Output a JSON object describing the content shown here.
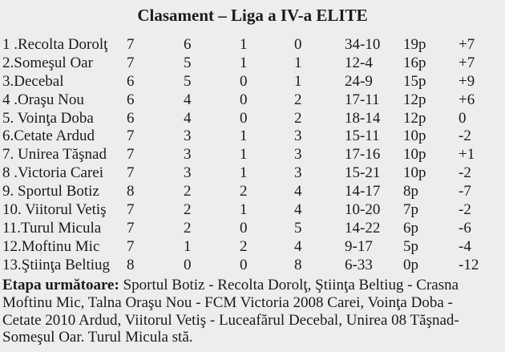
{
  "colors": {
    "background": "#ededed",
    "text": "#1b1b1b"
  },
  "title": "Clasament – Liga a IV-a ELITE",
  "table": {
    "column_keys": [
      "team",
      "played",
      "won",
      "drawn",
      "lost",
      "goals",
      "points",
      "diff"
    ],
    "rows": [
      {
        "team": "1 .Recolta Dorolţ",
        "played": "7",
        "won": "6",
        "drawn": "1",
        "lost": "0",
        "goals": "34-10",
        "points": "19p",
        "diff": "+7"
      },
      {
        "team": "2.Someşul Oar",
        "played": "7",
        "won": "5",
        "drawn": "1",
        "lost": "1",
        "goals": "12-4",
        "points": "16p",
        "diff": "+7"
      },
      {
        "team": "3.Decebal",
        "played": "6",
        "won": "5",
        "drawn": "0",
        "lost": "1",
        "goals": "24-9",
        "points": "15p",
        "diff": "+9"
      },
      {
        "team": "4 .Oraşu Nou",
        "played": "6",
        "won": "4",
        "drawn": "0",
        "lost": "2",
        "goals": "17-11",
        "points": "12p",
        "diff": "+6"
      },
      {
        "team": "5. Voinţa Doba",
        "played": "6",
        "won": "4",
        "drawn": "0",
        "lost": "2",
        "goals": "18-14",
        "points": "12p",
        "diff": "0"
      },
      {
        "team": "6.Cetate Ardud",
        "played": "7",
        "won": "3",
        "drawn": "1",
        "lost": "3",
        "goals": "15-11",
        "points": "10p",
        "diff": "-2"
      },
      {
        "team": "7. Unirea Tăşnad",
        "played": "7",
        "won": "3",
        "drawn": "1",
        "lost": "3",
        "goals": "17-16",
        "points": "10p",
        "diff": "+1"
      },
      {
        "team": "8 .Victoria Carei",
        "played": "7",
        "won": "3",
        "drawn": "1",
        "lost": "3",
        "goals": "15-21",
        "points": "10p",
        "diff": "-2"
      },
      {
        "team": "9. Sportul Botiz",
        "played": "8",
        "won": "2",
        "drawn": "2",
        "lost": "4",
        "goals": "14-17",
        "points": "8p",
        "diff": "-7"
      },
      {
        "team": "10. Viitorul Vetiş",
        "played": "7",
        "won": "2",
        "drawn": "1",
        "lost": "4",
        "goals": "10-20",
        "points": "7p",
        "diff": "-2"
      },
      {
        "team": "11.Turul Micula",
        "played": "7",
        "won": "2",
        "drawn": "0",
        "lost": "5",
        "goals": "14-22",
        "points": "6p",
        "diff": "-6"
      },
      {
        "team": "12.Moftinu Mic",
        "played": "7",
        "won": "1",
        "drawn": "2",
        "lost": "4",
        "goals": "9-17",
        "points": "5p",
        "diff": "-4"
      },
      {
        "team": "13.Ştiinţa Beltiug",
        "played": "8",
        "won": "0",
        "drawn": "0",
        "lost": "8",
        "goals": "6-33",
        "points": "0p",
        "diff": "-12"
      }
    ]
  },
  "footer": {
    "label": "Etapa următoare:",
    "line1_rest": " Sportul Botiz - Recolta Dorolţ, Ştiinţa Beltiug - Crasna",
    "lines": [
      "Moftinu Mic, Talna Oraşu Nou - FCM Victoria 2008 Carei, Voinţa Doba -",
      "Cetate 2010 Ardud, Viitorul Vetiş - Luceafărul Decebal, Unirea 08 Tăşnad-",
      "Someşul Oar. Turul Micula stă."
    ]
  }
}
